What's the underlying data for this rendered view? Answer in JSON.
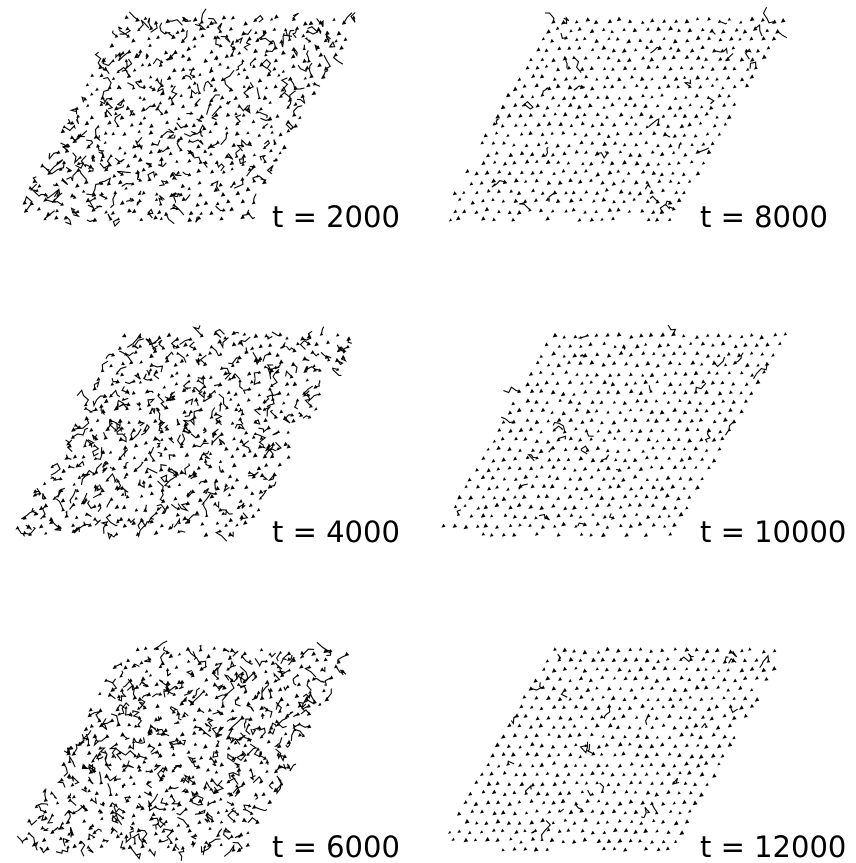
{
  "panels": [
    {
      "label": "t = 2000"
    },
    {
      "label": "t = 8000"
    },
    {
      "label": "t = 4000"
    },
    {
      "label": "t = 10000"
    },
    {
      "label": "t = 6000"
    },
    {
      "label": "t = 12000"
    }
  ]
}
